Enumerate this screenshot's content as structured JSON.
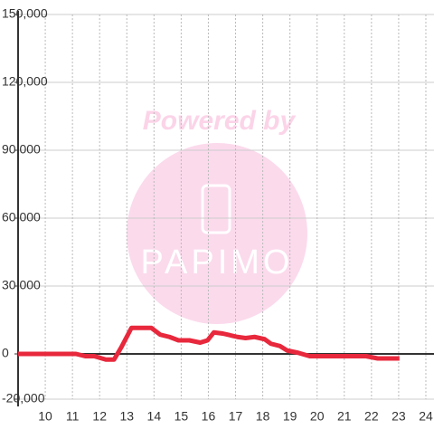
{
  "chart_data": {
    "type": "line",
    "x": [
      9.0,
      11.13,
      11.47,
      11.8,
      12.23,
      12.53,
      12.8,
      13.17,
      13.9,
      14.23,
      14.57,
      14.9,
      15.3,
      15.7,
      15.97,
      16.2,
      16.53,
      17.07,
      17.37,
      17.7,
      18.07,
      18.3,
      18.63,
      18.9,
      19.3,
      19.73,
      21.8,
      22.23,
      23.03
    ],
    "series": [
      {
        "color": "#e8283c",
        "values": [
          0,
          0,
          -1000,
          -1000,
          -2500,
          -2500,
          3000,
          11500,
          11500,
          8500,
          7500,
          6000,
          6000,
          5000,
          6000,
          9500,
          9000,
          7500,
          7000,
          7500,
          6500,
          4500,
          3500,
          1500,
          500,
          -1000,
          -1000,
          -2000,
          -2000
        ]
      }
    ],
    "xlim": [
      9,
      24.3
    ],
    "xticks": [
      10,
      11,
      12,
      13,
      14,
      15,
      16,
      17,
      18,
      19,
      20,
      21,
      22,
      23,
      24
    ],
    "ylim": [
      -20000,
      150000
    ],
    "yticks": [
      {
        "value": -20000,
        "label": "-20,000"
      },
      0,
      {
        "value": 30000,
        "label": "30,000"
      },
      {
        "value": 60000,
        "label": "60,000"
      },
      {
        "value": 90000,
        "label": "90,000"
      },
      {
        "value": 120000,
        "label": "120,000"
      },
      {
        "value": 150000,
        "label": "150,000"
      }
    ],
    "grid": true
  },
  "watermark": {
    "top": "Powered by",
    "brand": "PAPIMO"
  }
}
